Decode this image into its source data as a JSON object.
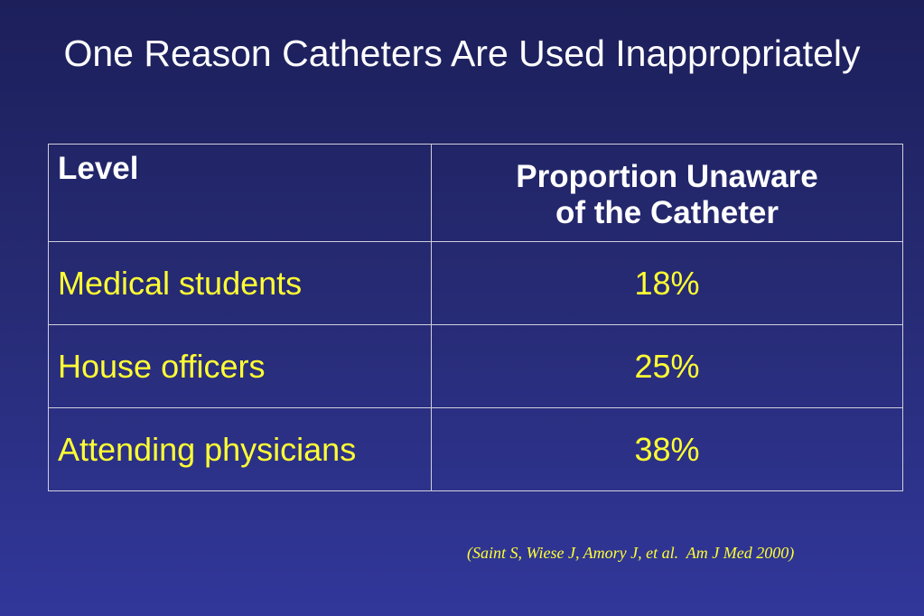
{
  "slide": {
    "title": "One Reason Catheters Are Used Inappropriately",
    "citation": "(Saint S, Wiese J, Amory J, et al.  Am J Med 2000)",
    "colors": {
      "background_top": "#1c1f5a",
      "background_bottom": "#31379a",
      "header_text": "#ffffff",
      "body_text": "#ffff33",
      "border": "#d0d0dc"
    }
  },
  "table": {
    "headers": {
      "level": "Level",
      "proportion_line1": "Proportion Unaware",
      "proportion_line2": "of the Catheter"
    },
    "rows": [
      {
        "level": "Medical students",
        "proportion": "18%"
      },
      {
        "level": "House officers",
        "proportion": "25%"
      },
      {
        "level": "Attending physicians",
        "proportion": "38%"
      }
    ]
  }
}
